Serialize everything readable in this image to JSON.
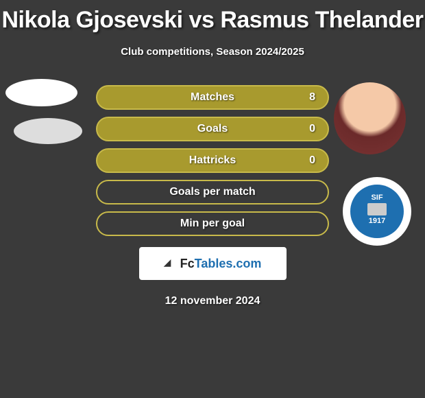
{
  "header": {
    "title": "Nikola Gjosevski vs Rasmus Thelander",
    "subtitle": "Club competitions, Season 2024/2025"
  },
  "stats": [
    {
      "label": "Matches",
      "value": "8",
      "filled": true
    },
    {
      "label": "Goals",
      "value": "0",
      "filled": true
    },
    {
      "label": "Hattricks",
      "value": "0",
      "filled": true
    },
    {
      "label": "Goals per match",
      "value": "",
      "filled": false
    },
    {
      "label": "Min per goal",
      "value": "",
      "filled": false
    }
  ],
  "brand": {
    "name_pre": "Fc",
    "name_post": "Tables.com"
  },
  "date": "12 november 2024",
  "badge": {
    "top": "SIF",
    "year": "1917"
  },
  "colors": {
    "bg": "#3a3a3a",
    "bar_fill": "#a89a2e",
    "bar_border": "#c8ba4a",
    "accent": "#1e6fb0"
  }
}
